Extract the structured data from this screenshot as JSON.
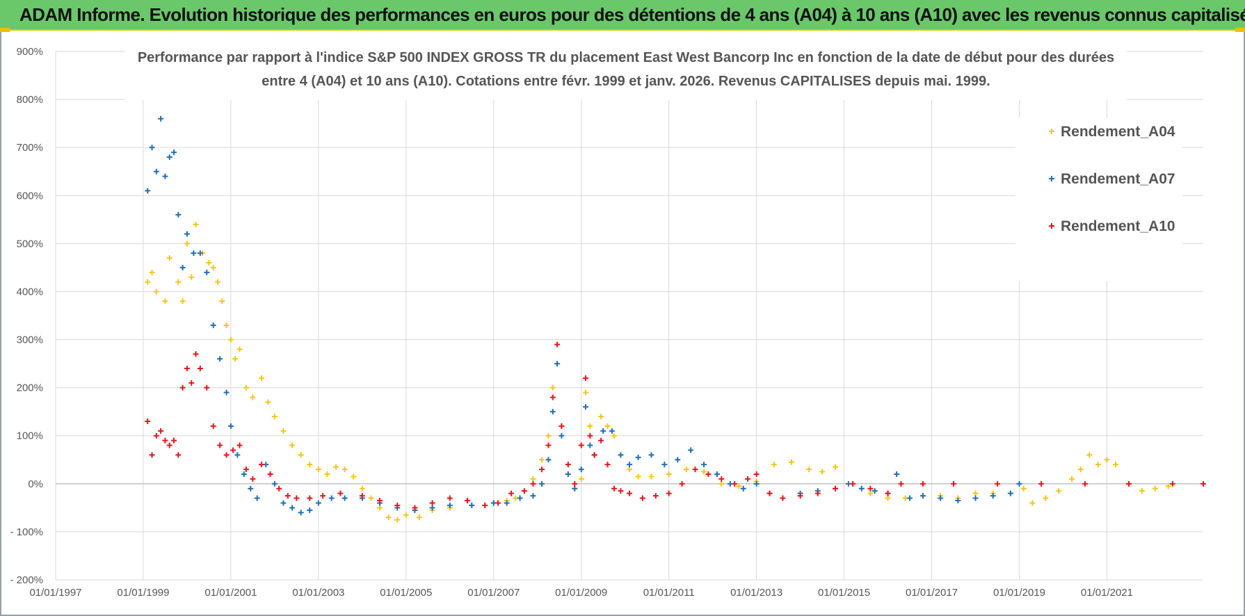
{
  "banner": {
    "title": "ADAM Informe. Evolution historique des performances en euros pour des détentions de 4 ans (A04) à 10 ans (A10) avec les revenus connus capitalisés"
  },
  "colors": {
    "banner_bg": "#6ac76a",
    "a04": "#f5c518",
    "a07": "#1f6fb5",
    "a10": "#e8141b",
    "grid": "#d9d9d9"
  },
  "chart_data": {
    "type": "scatter",
    "title": "Performance par rapport à l'indice S&P 500 INDEX GROSS TR  du placement East West Bancorp Inc en fonction de la date de début pour des durées entre 4 (A04) et 10 ans (A10). Cotations entre févr. 1999 et janv. 2026. Revenus CAPITALISES depuis mai. 1999.",
    "title_lines": [
      "Performance par rapport à l'indice S&P 500 INDEX GROSS TR  du placement East West Bancorp Inc en fonction de la date de début pour des durées",
      "entre 4 (A04) et 10 ans (A10). Cotations entre févr. 1999 et janv. 2026. Revenus CAPITALISES depuis mai. 1999."
    ],
    "xlabel": "",
    "ylabel": "",
    "xlim": [
      1997.0,
      2023.2
    ],
    "ylim": [
      -200,
      900
    ],
    "x_ticks": [
      1997,
      1999,
      2001,
      2003,
      2005,
      2007,
      2009,
      2011,
      2013,
      2015,
      2017,
      2019,
      2021
    ],
    "x_tick_labels": [
      "01/01/1997",
      "01/01/1999",
      "01/01/2001",
      "01/01/2003",
      "01/01/2005",
      "01/01/2007",
      "01/01/2009",
      "01/01/2011",
      "01/01/2013",
      "01/01/2015",
      "01/01/2017",
      "01/01/2019",
      "01/01/2021"
    ],
    "y_ticks": [
      -200,
      -100,
      0,
      100,
      200,
      300,
      400,
      500,
      600,
      700,
      800,
      900
    ],
    "y_tick_labels": [
      "- 200%",
      "- 100%",
      "0%",
      "100%",
      "200%",
      "300%",
      "400%",
      "500%",
      "600%",
      "700%",
      "800%",
      "900%"
    ],
    "legend_position": "top-right",
    "series": [
      {
        "name": "Rendement_A04",
        "color": "#f5c518",
        "x": [
          1999.1,
          1999.2,
          1999.3,
          1999.5,
          1999.6,
          1999.8,
          1999.9,
          2000.0,
          2000.1,
          2000.2,
          2000.35,
          2000.5,
          2000.6,
          2000.7,
          2000.8,
          2000.9,
          2001.0,
          2001.1,
          2001.2,
          2001.35,
          2001.5,
          2001.7,
          2001.85,
          2002.0,
          2002.2,
          2002.4,
          2002.6,
          2002.8,
          2003.0,
          2003.2,
          2003.4,
          2003.6,
          2003.8,
          2004.0,
          2004.2,
          2004.4,
          2004.6,
          2004.8,
          2005.0,
          2005.3,
          2005.6,
          2006.0,
          2006.5,
          2007.0,
          2007.3,
          2007.5,
          2007.7,
          2007.9,
          2008.1,
          2008.25,
          2008.35,
          2008.45,
          2008.55,
          2008.7,
          2008.85,
          2009.0,
          2009.1,
          2009.2,
          2009.3,
          2009.45,
          2009.6,
          2009.75,
          2009.9,
          2010.1,
          2010.3,
          2010.6,
          2011.0,
          2011.4,
          2011.8,
          2012.2,
          2012.6,
          2013.0,
          2013.4,
          2013.8,
          2014.2,
          2014.5,
          2014.8,
          2015.2,
          2015.6,
          2016.0,
          2016.4,
          2016.8,
          2017.2,
          2017.6,
          2018.0,
          2018.4,
          2018.8,
          2019.1,
          2019.3,
          2019.6,
          2019.9,
          2020.2,
          2020.4,
          2020.6,
          2020.8,
          2021.0,
          2021.2,
          2021.5,
          2021.8,
          2022.1,
          2022.4
        ],
        "y": [
          420,
          440,
          400,
          380,
          470,
          420,
          380,
          500,
          430,
          540,
          480,
          460,
          450,
          420,
          380,
          330,
          300,
          260,
          280,
          200,
          180,
          220,
          170,
          140,
          110,
          80,
          60,
          40,
          30,
          20,
          35,
          30,
          15,
          -10,
          -30,
          -50,
          -70,
          -75,
          -65,
          -70,
          -55,
          -50,
          -45,
          -40,
          -35,
          -30,
          -15,
          10,
          50,
          100,
          200,
          250,
          120,
          20,
          -10,
          10,
          190,
          120,
          60,
          140,
          120,
          100,
          60,
          30,
          15,
          15,
          20,
          30,
          25,
          0,
          -5,
          5,
          40,
          45,
          30,
          25,
          35,
          0,
          -20,
          -30,
          -30,
          -25,
          -25,
          -30,
          -20,
          -20,
          -20,
          -10,
          -40,
          -30,
          -15,
          10,
          30,
          60,
          40,
          50,
          40,
          0,
          -15,
          -10,
          -5
        ]
      },
      {
        "name": "Rendement_A07",
        "color": "#1f6fb5",
        "x": [
          1999.1,
          1999.2,
          1999.3,
          1999.4,
          1999.5,
          1999.6,
          1999.7,
          1999.8,
          1999.9,
          2000.0,
          2000.15,
          2000.3,
          2000.45,
          2000.6,
          2000.75,
          2000.9,
          2001.0,
          2001.15,
          2001.3,
          2001.45,
          2001.6,
          2001.8,
          2002.0,
          2002.2,
          2002.4,
          2002.6,
          2002.8,
          2003.0,
          2003.3,
          2003.6,
          2004.0,
          2004.4,
          2004.8,
          2005.2,
          2005.6,
          2006.0,
          2006.5,
          2007.0,
          2007.3,
          2007.6,
          2007.9,
          2008.1,
          2008.25,
          2008.35,
          2008.45,
          2008.55,
          2008.7,
          2008.85,
          2009.0,
          2009.1,
          2009.2,
          2009.3,
          2009.5,
          2009.7,
          2009.9,
          2010.1,
          2010.3,
          2010.6,
          2010.9,
          2011.2,
          2011.5,
          2011.8,
          2012.1,
          2012.4,
          2012.7,
          2013.0,
          2013.3,
          2013.6,
          2014.0,
          2014.4,
          2014.8,
          2015.1,
          2015.4,
          2015.7,
          2016.0,
          2016.2,
          2016.5,
          2016.8,
          2017.2,
          2017.6,
          2018.0,
          2018.4,
          2018.8,
          2019.0
        ],
        "y": [
          610,
          700,
          650,
          760,
          640,
          680,
          690,
          560,
          450,
          520,
          480,
          480,
          440,
          330,
          260,
          190,
          120,
          60,
          20,
          -10,
          -30,
          40,
          0,
          -40,
          -50,
          -60,
          -55,
          -40,
          -30,
          -30,
          -30,
          -40,
          -50,
          -55,
          -50,
          -45,
          -45,
          -40,
          -40,
          -30,
          -25,
          0,
          50,
          150,
          250,
          100,
          20,
          -10,
          30,
          160,
          80,
          60,
          110,
          110,
          60,
          40,
          55,
          60,
          40,
          50,
          70,
          40,
          20,
          0,
          -10,
          0,
          -20,
          -30,
          -20,
          -15,
          -10,
          0,
          -10,
          -15,
          -20,
          20,
          -30,
          -25,
          -30,
          -35,
          -30,
          -25,
          -20,
          0
        ]
      },
      {
        "name": "Rendement_A10",
        "color": "#e8141b",
        "x": [
          1999.1,
          1999.2,
          1999.3,
          1999.4,
          1999.5,
          1999.6,
          1999.7,
          1999.8,
          1999.9,
          2000.0,
          2000.1,
          2000.2,
          2000.3,
          2000.45,
          2000.6,
          2000.75,
          2000.9,
          2001.05,
          2001.2,
          2001.35,
          2001.5,
          2001.7,
          2001.9,
          2002.1,
          2002.3,
          2002.5,
          2002.8,
          2003.1,
          2003.5,
          2004.0,
          2004.4,
          2004.8,
          2005.2,
          2005.6,
          2006.0,
          2006.4,
          2006.8,
          2007.1,
          2007.4,
          2007.7,
          2007.9,
          2008.1,
          2008.25,
          2008.35,
          2008.45,
          2008.55,
          2008.7,
          2008.85,
          2009.0,
          2009.1,
          2009.2,
          2009.3,
          2009.45,
          2009.6,
          2009.75,
          2009.9,
          2010.1,
          2010.4,
          2010.7,
          2011.0,
          2011.3,
          2011.6,
          2011.9,
          2012.2,
          2012.5,
          2012.8,
          2013.0,
          2013.3,
          2013.6,
          2014.0,
          2014.4,
          2014.8,
          2015.2,
          2015.6,
          2016.0,
          2016.3,
          2016.8,
          2017.5,
          2018.5,
          2019.5,
          2020.5,
          2021.5,
          2022.5,
          2023.2
        ],
        "y": [
          130,
          60,
          100,
          110,
          90,
          80,
          90,
          60,
          200,
          240,
          210,
          270,
          240,
          200,
          120,
          80,
          60,
          70,
          80,
          30,
          10,
          40,
          20,
          -10,
          -25,
          -30,
          -30,
          -25,
          -20,
          -25,
          -35,
          -45,
          -50,
          -40,
          -30,
          -35,
          -45,
          -40,
          -20,
          -15,
          0,
          30,
          80,
          180,
          290,
          120,
          40,
          0,
          80,
          220,
          100,
          60,
          90,
          40,
          -10,
          -15,
          -20,
          -30,
          -25,
          -20,
          0,
          30,
          20,
          10,
          0,
          10,
          20,
          -20,
          -30,
          -25,
          -20,
          -10,
          0,
          -10,
          -20,
          0,
          0,
          0,
          0,
          0,
          0,
          0,
          0,
          0
        ]
      }
    ]
  }
}
